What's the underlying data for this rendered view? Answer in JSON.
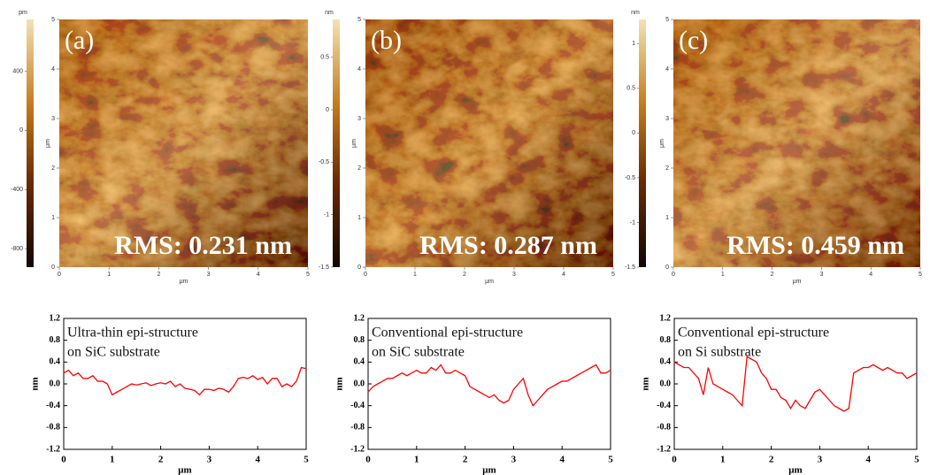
{
  "chart_data": [
    {
      "type": "heatmap",
      "label": "(a)",
      "annotation": "RMS: 0.231 nm",
      "xlim": [
        0,
        5
      ],
      "ylim": [
        0,
        5
      ],
      "xticks": [
        0,
        1,
        2,
        3,
        4,
        5
      ],
      "yticks": [
        0,
        1,
        2,
        3,
        4,
        5
      ],
      "xlabel": "μm",
      "ylabel": "μm",
      "colorbar": {
        "unit": "pm",
        "lim": [
          -925,
          750
        ],
        "ticks": [
          400,
          0,
          -400,
          -800
        ]
      }
    },
    {
      "type": "heatmap",
      "label": "(b)",
      "annotation": "RMS: 0.287 nm",
      "xlim": [
        0,
        5
      ],
      "ylim": [
        0,
        5
      ],
      "xticks": [
        0,
        1,
        2,
        3,
        4,
        5
      ],
      "yticks": [
        0,
        1,
        2,
        3,
        4,
        5
      ],
      "xlabel": "μm",
      "ylabel": "μm",
      "colorbar": {
        "unit": "nm",
        "lim": [
          -1.5,
          0.86
        ],
        "ticks": [
          0.5,
          0,
          -0.5,
          -1,
          -1.5
        ]
      }
    },
    {
      "type": "heatmap",
      "label": "(c)",
      "annotation": "RMS: 0.459 nm",
      "xlim": [
        0,
        5
      ],
      "ylim": [
        0,
        5
      ],
      "xticks": [
        0,
        1,
        2,
        3,
        4,
        5
      ],
      "yticks": [
        0,
        1,
        2,
        3,
        4,
        5
      ],
      "xlabel": "μm",
      "ylabel": "μm",
      "colorbar": {
        "unit": "nm",
        "lim": [
          -1.5,
          1.27
        ],
        "ticks": [
          1,
          0.5,
          0,
          -0.5,
          -1,
          -1.5
        ]
      }
    },
    {
      "type": "line",
      "text": [
        "Ultra-thin epi-structure",
        "on SiC substrate"
      ],
      "color": "#ff0000",
      "xlabel": "μm",
      "ylabel": "nm",
      "xlim": [
        0,
        5
      ],
      "ylim": [
        -1.2,
        1.2
      ],
      "xticks": [
        0,
        1,
        2,
        3,
        4,
        5
      ],
      "yticks": [
        -1.2,
        -0.8,
        -0.4,
        {
          "value": 0,
          "label": "0.0"
        },
        0.4,
        0.8,
        1.2
      ],
      "x": [
        0,
        0.1,
        0.2,
        0.3,
        0.4,
        0.5,
        0.6,
        0.7,
        0.8,
        0.9,
        1,
        1.1,
        1.2,
        1.3,
        1.4,
        1.5,
        1.6,
        1.7,
        1.8,
        1.9,
        2,
        2.1,
        2.2,
        2.3,
        2.4,
        2.5,
        2.6,
        2.7,
        2.8,
        2.9,
        3,
        3.1,
        3.2,
        3.3,
        3.4,
        3.5,
        3.6,
        3.7,
        3.8,
        3.9,
        4,
        4.1,
        4.2,
        4.3,
        4.4,
        4.5,
        4.6,
        4.7,
        4.8,
        4.9,
        5
      ],
      "values": [
        0.2,
        0.25,
        0.15,
        0.2,
        0.1,
        0.1,
        0.15,
        0.05,
        0.05,
        0.0,
        -0.2,
        -0.15,
        -0.1,
        -0.05,
        0.0,
        -0.02,
        0.0,
        0.02,
        -0.03,
        0.0,
        0.02,
        0.0,
        0.05,
        -0.05,
        0.0,
        -0.08,
        -0.1,
        -0.12,
        -0.2,
        -0.1,
        -0.1,
        -0.12,
        -0.08,
        -0.1,
        -0.15,
        -0.05,
        0.1,
        0.12,
        0.1,
        0.15,
        0.08,
        0.12,
        0.0,
        0.1,
        0.1,
        -0.05,
        0.0,
        -0.05,
        0.05,
        0.3,
        0.28
      ]
    },
    {
      "type": "line",
      "text": [
        "Conventional epi-structure",
        "on SiC substrate"
      ],
      "color": "#ff0000",
      "xlabel": "μm",
      "ylabel": "nm",
      "xlim": [
        0,
        5
      ],
      "ylim": [
        -1.2,
        1.2
      ],
      "xticks": [
        0,
        1,
        2,
        3,
        4,
        5
      ],
      "yticks": [
        -1.2,
        -0.8,
        -0.4,
        {
          "value": 0,
          "label": "0.0"
        },
        0.4,
        0.8,
        1.2
      ],
      "x": [
        0,
        0.1,
        0.2,
        0.3,
        0.4,
        0.5,
        0.6,
        0.7,
        0.8,
        0.9,
        1,
        1.1,
        1.2,
        1.3,
        1.4,
        1.5,
        1.6,
        1.7,
        1.8,
        1.9,
        2,
        2.1,
        2.2,
        2.3,
        2.4,
        2.5,
        2.6,
        2.7,
        2.8,
        2.9,
        3,
        3.1,
        3.2,
        3.3,
        3.4,
        3.5,
        3.6,
        3.7,
        3.8,
        3.9,
        4,
        4.1,
        4.2,
        4.3,
        4.4,
        4.5,
        4.6,
        4.7,
        4.8,
        4.9,
        5
      ],
      "values": [
        -0.15,
        -0.05,
        0.0,
        0.05,
        0.1,
        0.1,
        0.15,
        0.2,
        0.15,
        0.2,
        0.25,
        0.2,
        0.2,
        0.3,
        0.25,
        0.35,
        0.2,
        0.2,
        0.25,
        0.2,
        0.15,
        -0.05,
        -0.1,
        -0.15,
        -0.2,
        -0.25,
        -0.2,
        -0.3,
        -0.35,
        -0.3,
        -0.1,
        0.0,
        0.1,
        -0.2,
        -0.4,
        -0.3,
        -0.2,
        -0.1,
        -0.05,
        0.0,
        0.05,
        0.05,
        0.1,
        0.15,
        0.2,
        0.25,
        0.3,
        0.35,
        0.2,
        0.2,
        0.25
      ]
    },
    {
      "type": "line",
      "text": [
        "Conventional epi-structure",
        "on Si substrate"
      ],
      "color": "#ff0000",
      "xlabel": "μm",
      "ylabel": "nm",
      "xlim": [
        0,
        5
      ],
      "ylim": [
        -1.2,
        1.2
      ],
      "xticks": [
        0,
        1,
        2,
        3,
        4,
        5
      ],
      "yticks": [
        -1.2,
        -0.8,
        -0.4,
        {
          "value": 0,
          "label": "0.0"
        },
        0.4,
        0.8,
        1.2
      ],
      "x": [
        0,
        0.1,
        0.2,
        0.3,
        0.4,
        0.5,
        0.6,
        0.7,
        0.8,
        0.9,
        1,
        1.1,
        1.2,
        1.3,
        1.4,
        1.5,
        1.6,
        1.7,
        1.8,
        1.9,
        2,
        2.1,
        2.2,
        2.3,
        2.4,
        2.5,
        2.6,
        2.7,
        2.8,
        2.9,
        3,
        3.1,
        3.2,
        3.3,
        3.4,
        3.5,
        3.6,
        3.7,
        3.8,
        3.9,
        4,
        4.1,
        4.2,
        4.3,
        4.4,
        4.5,
        4.6,
        4.7,
        4.8,
        4.9,
        5
      ],
      "values": [
        0.4,
        0.35,
        0.3,
        0.3,
        0.2,
        0.1,
        -0.2,
        0.3,
        0.0,
        -0.05,
        -0.1,
        -0.15,
        -0.2,
        -0.3,
        -0.4,
        0.5,
        0.45,
        0.4,
        0.2,
        0.1,
        -0.1,
        -0.1,
        -0.25,
        -0.3,
        -0.45,
        -0.3,
        -0.4,
        -0.45,
        -0.3,
        -0.15,
        -0.1,
        -0.2,
        -0.3,
        -0.4,
        -0.45,
        -0.5,
        -0.45,
        0.2,
        0.25,
        0.3,
        0.3,
        0.35,
        0.3,
        0.25,
        0.3,
        0.25,
        0.2,
        0.2,
        0.1,
        0.15,
        0.2
      ]
    }
  ]
}
